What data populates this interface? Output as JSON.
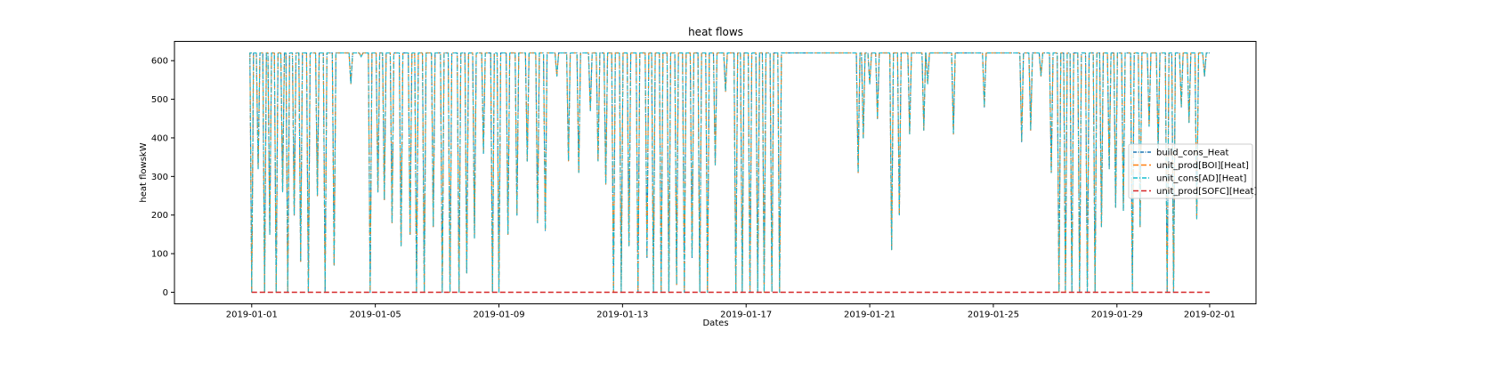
{
  "chart_data": {
    "type": "line",
    "title": "heat flows",
    "xlabel": "Dates",
    "ylabel": "heat flowskW",
    "xlim": [
      "2018-12-29T12:00",
      "2019-02-02T12:00"
    ],
    "ylim": [
      -30,
      650
    ],
    "yticks": [
      0,
      100,
      200,
      300,
      400,
      500,
      600
    ],
    "xticks": [
      "2019-01-01",
      "2019-01-05",
      "2019-01-09",
      "2019-01-13",
      "2019-01-17",
      "2019-01-21",
      "2019-01-25",
      "2019-01-29",
      "2019-02-01"
    ],
    "grid": false,
    "legend_position": "center-right",
    "x_start": "2019-01-01T00:00",
    "x_end": "2019-02-01T00:00",
    "series": [
      {
        "name": "build_cons_Heat",
        "color": "#1f77b4",
        "dash": "dashdot-fine"
      },
      {
        "name": "unit_prod[BOI][Heat]",
        "color": "#ff7f0e",
        "dash": "dashed"
      },
      {
        "name": "unit_cons[AD][Heat]",
        "color": "#17becf",
        "dash": "dashdot"
      },
      {
        "name": "unit_prod[SOFC][Heat]",
        "color": "#d62728",
        "dash": "dashed"
      }
    ],
    "baseline_value": 620,
    "dips": [
      [
        "2019-01-01T00:00",
        0
      ],
      [
        "2019-01-01T05:00",
        320
      ],
      [
        "2019-01-01T10:00",
        0
      ],
      [
        "2019-01-01T14:00",
        150
      ],
      [
        "2019-01-01T19:00",
        0
      ],
      [
        "2019-01-02T00:00",
        260
      ],
      [
        "2019-01-02T04:00",
        0
      ],
      [
        "2019-01-02T09:00",
        200
      ],
      [
        "2019-01-02T14:00",
        80
      ],
      [
        "2019-01-02T20:00",
        0
      ],
      [
        "2019-01-03T03:00",
        250
      ],
      [
        "2019-01-03T09:00",
        0
      ],
      [
        "2019-01-03T16:00",
        70
      ],
      [
        "2019-01-04T05:00",
        540
      ],
      [
        "2019-01-04T13:00",
        610
      ],
      [
        "2019-01-04T20:00",
        0
      ],
      [
        "2019-01-05T02:00",
        260
      ],
      [
        "2019-01-05T07:00",
        240
      ],
      [
        "2019-01-05T13:00",
        180
      ],
      [
        "2019-01-05T20:00",
        120
      ],
      [
        "2019-01-06T03:00",
        150
      ],
      [
        "2019-01-06T08:00",
        0
      ],
      [
        "2019-01-06T14:00",
        0
      ],
      [
        "2019-01-06T21:00",
        170
      ],
      [
        "2019-01-07T04:00",
        0
      ],
      [
        "2019-01-07T10:00",
        0
      ],
      [
        "2019-01-07T17:00",
        0
      ],
      [
        "2019-01-07T23:00",
        50
      ],
      [
        "2019-01-08T05:00",
        140
      ],
      [
        "2019-01-08T12:00",
        360
      ],
      [
        "2019-01-08T19:00",
        0
      ],
      [
        "2019-01-09T00:00",
        0
      ],
      [
        "2019-01-09T07:00",
        150
      ],
      [
        "2019-01-09T14:00",
        200
      ],
      [
        "2019-01-09T22:00",
        340
      ],
      [
        "2019-01-10T06:00",
        180
      ],
      [
        "2019-01-10T12:00",
        160
      ],
      [
        "2019-01-10T21:00",
        560
      ],
      [
        "2019-01-11T06:00",
        340
      ],
      [
        "2019-01-11T14:00",
        310
      ],
      [
        "2019-01-11T23:00",
        470
      ],
      [
        "2019-01-12T05:00",
        340
      ],
      [
        "2019-01-12T11:00",
        280
      ],
      [
        "2019-01-12T17:00",
        0
      ],
      [
        "2019-01-12T23:00",
        0
      ],
      [
        "2019-01-13T05:00",
        120
      ],
      [
        "2019-01-13T12:00",
        0
      ],
      [
        "2019-01-13T19:00",
        90
      ],
      [
        "2019-01-14T00:00",
        0
      ],
      [
        "2019-01-14T06:00",
        0
      ],
      [
        "2019-01-14T12:00",
        0
      ],
      [
        "2019-01-14T18:00",
        20
      ],
      [
        "2019-01-15T00:00",
        0
      ],
      [
        "2019-01-15T06:00",
        90
      ],
      [
        "2019-01-15T12:00",
        0
      ],
      [
        "2019-01-15T18:00",
        0
      ],
      [
        "2019-01-16T00:00",
        330
      ],
      [
        "2019-01-16T08:00",
        520
      ],
      [
        "2019-01-16T16:00",
        0
      ],
      [
        "2019-01-16T21:00",
        0
      ],
      [
        "2019-01-17T03:00",
        0
      ],
      [
        "2019-01-17T09:00",
        0
      ],
      [
        "2019-01-17T14:00",
        0
      ],
      [
        "2019-01-17T20:00",
        0
      ],
      [
        "2019-01-18T02:00",
        0
      ],
      [
        "2019-01-20T15:00",
        310
      ],
      [
        "2019-01-20T19:00",
        400
      ],
      [
        "2019-01-21T00:00",
        540
      ],
      [
        "2019-01-21T06:00",
        450
      ],
      [
        "2019-01-21T17:00",
        110
      ],
      [
        "2019-01-21T23:00",
        200
      ],
      [
        "2019-01-22T07:00",
        410
      ],
      [
        "2019-01-22T18:00",
        420
      ],
      [
        "2019-01-22T21:00",
        540
      ],
      [
        "2019-01-23T17:00",
        410
      ],
      [
        "2019-01-24T17:00",
        480
      ],
      [
        "2019-01-25T22:00",
        390
      ],
      [
        "2019-01-26T05:00",
        420
      ],
      [
        "2019-01-26T13:00",
        560
      ],
      [
        "2019-01-26T21:00",
        310
      ],
      [
        "2019-01-27T03:00",
        0
      ],
      [
        "2019-01-27T08:00",
        0
      ],
      [
        "2019-01-27T13:00",
        0
      ],
      [
        "2019-01-27T19:00",
        0
      ],
      [
        "2019-01-28T01:00",
        0
      ],
      [
        "2019-01-28T07:00",
        0
      ],
      [
        "2019-01-28T12:00",
        170
      ],
      [
        "2019-01-28T18:00",
        320
      ],
      [
        "2019-01-28T23:00",
        220
      ],
      [
        "2019-01-29T05:00",
        210
      ],
      [
        "2019-01-29T12:00",
        0
      ],
      [
        "2019-01-29T18:00",
        170
      ],
      [
        "2019-01-30T01:00",
        430
      ],
      [
        "2019-01-30T08:00",
        370
      ],
      [
        "2019-01-30T15:00",
        0
      ],
      [
        "2019-01-30T20:00",
        0
      ],
      [
        "2019-01-31T02:00",
        480
      ],
      [
        "2019-01-31T08:00",
        440
      ],
      [
        "2019-01-31T14:00",
        190
      ],
      [
        "2019-01-31T20:00",
        560
      ]
    ]
  }
}
